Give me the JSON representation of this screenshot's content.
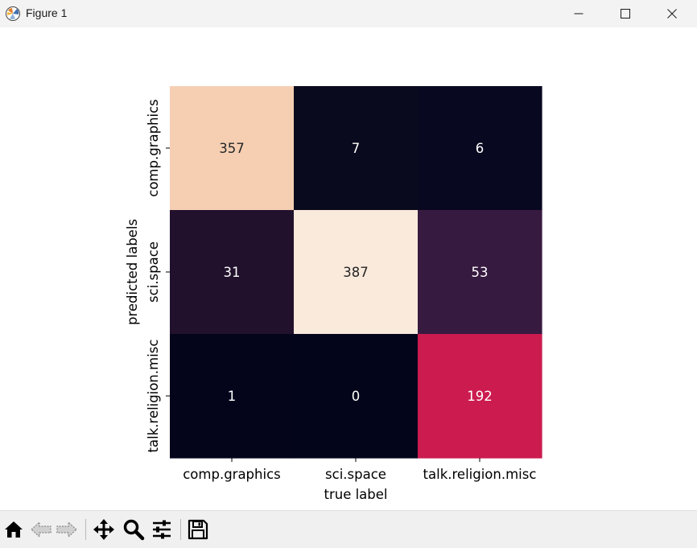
{
  "window": {
    "title": "Figure 1",
    "icons": [
      "matplotlib-app-icon",
      "minimize-icon",
      "maximize-icon",
      "close-icon"
    ]
  },
  "toolbar": {
    "buttons": [
      "home-icon",
      "back-icon",
      "forward-icon",
      "pan-icon",
      "zoom-icon",
      "configure-subplots-icon",
      "save-icon"
    ]
  },
  "chart_data": {
    "type": "heatmap",
    "title": "",
    "xlabel": "true label",
    "ylabel": "predicted labels",
    "x_categories": [
      "comp.graphics",
      "sci.space",
      "talk.religion.misc"
    ],
    "y_categories": [
      "comp.graphics",
      "sci.space",
      "talk.religion.misc"
    ],
    "values": [
      [
        357,
        7,
        6
      ],
      [
        31,
        387,
        53
      ],
      [
        1,
        0,
        192
      ]
    ],
    "colormap": "rocket",
    "colorbar": false,
    "grid": false,
    "cell_colors": [
      [
        "#f6cfb3",
        "#0a0a1e",
        "#080820"
      ],
      [
        "#21112c",
        "#faeadc",
        "#371a40"
      ],
      [
        "#04051a",
        "#03051a",
        "#cb1b4f"
      ]
    ],
    "annotation_colors": {
      "on_light": "#262626",
      "on_dark": "#ffffff"
    }
  }
}
